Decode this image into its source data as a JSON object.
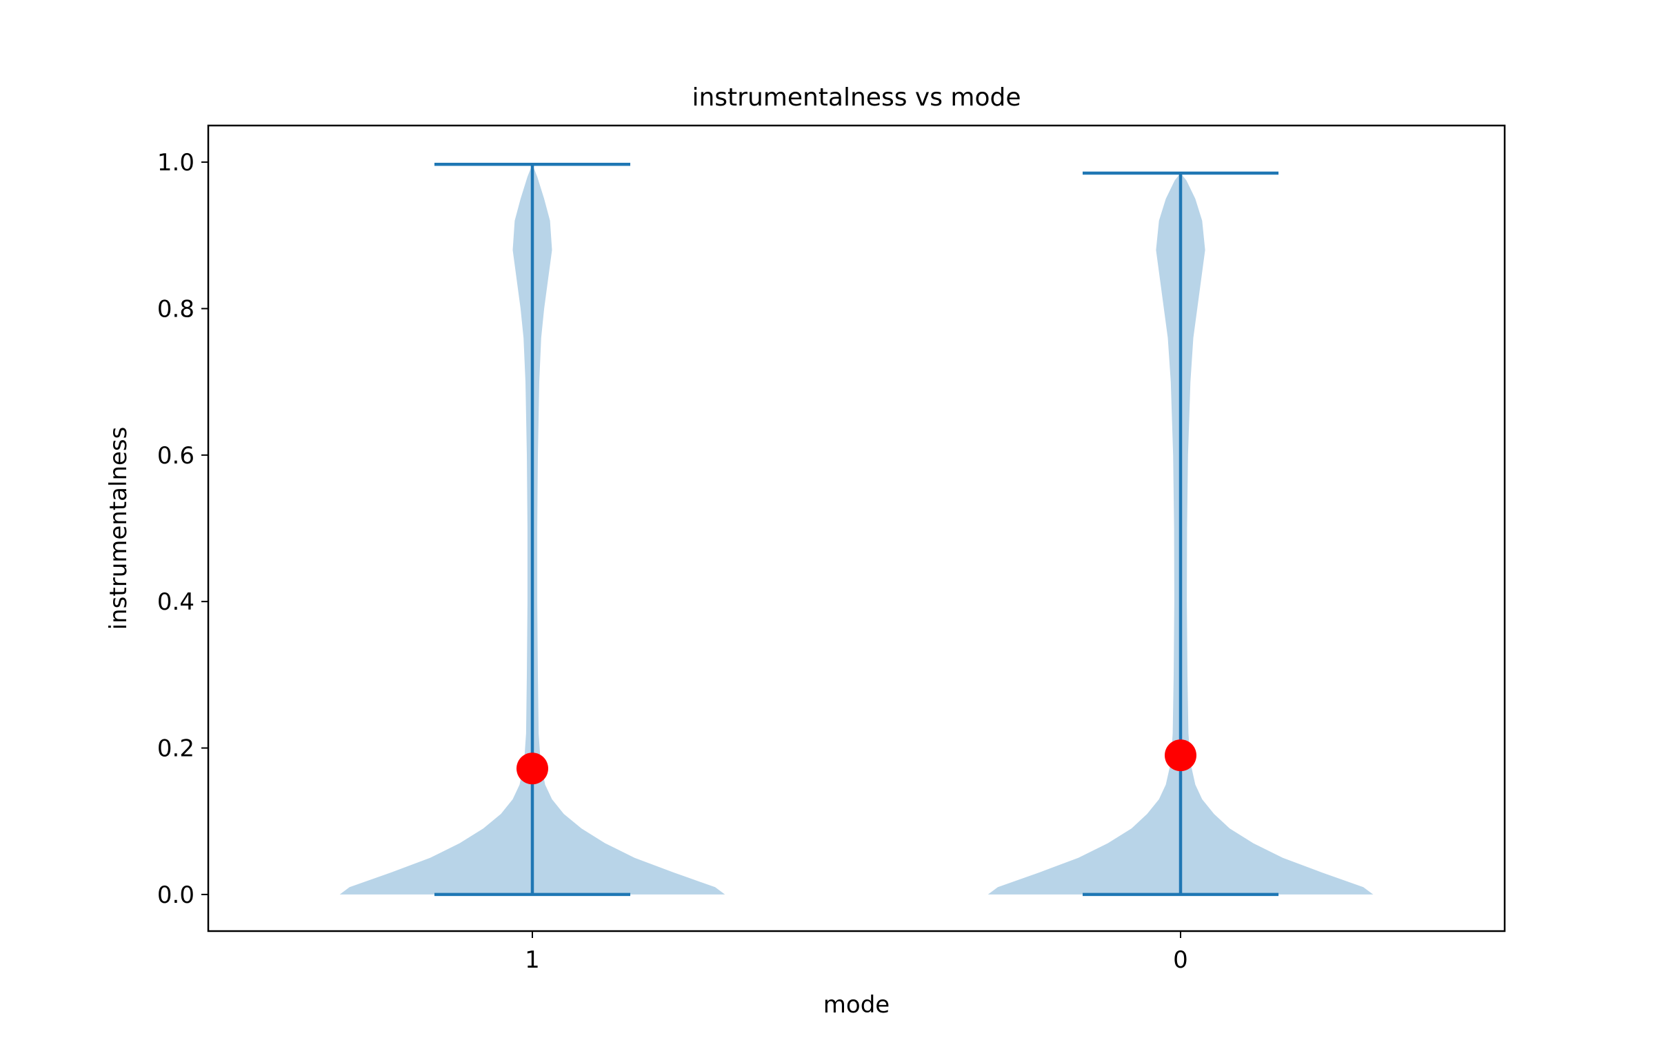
{
  "chart_data": {
    "type": "violin",
    "title": "instrumentalness vs mode",
    "xlabel": "mode",
    "ylabel": "instrumentalness",
    "categories": [
      "1",
      "0"
    ],
    "ylim": [
      -0.05,
      1.05
    ],
    "yticks": [
      0.0,
      0.2,
      0.4,
      0.6,
      0.8,
      1.0
    ],
    "ytick_labels": [
      "0.0",
      "0.2",
      "0.4",
      "0.6",
      "0.8",
      "1.0"
    ],
    "grid": false,
    "colors": {
      "violin_fill": "#b8d4e8",
      "stat_lines": "#1f77b4",
      "mean_marker": "#ff0000"
    },
    "series": [
      {
        "category": "1",
        "min": 0.0,
        "max": 0.997,
        "mean": 0.172,
        "density_profile": [
          [
            0.0,
            0.98
          ],
          [
            0.01,
            0.93
          ],
          [
            0.03,
            0.72
          ],
          [
            0.05,
            0.52
          ],
          [
            0.07,
            0.37
          ],
          [
            0.09,
            0.25
          ],
          [
            0.11,
            0.16
          ],
          [
            0.13,
            0.1
          ],
          [
            0.15,
            0.065
          ],
          [
            0.18,
            0.042
          ],
          [
            0.22,
            0.032
          ],
          [
            0.3,
            0.028
          ],
          [
            0.4,
            0.025
          ],
          [
            0.5,
            0.025
          ],
          [
            0.6,
            0.028
          ],
          [
            0.7,
            0.035
          ],
          [
            0.76,
            0.045
          ],
          [
            0.8,
            0.06
          ],
          [
            0.84,
            0.08
          ],
          [
            0.88,
            0.1
          ],
          [
            0.92,
            0.09
          ],
          [
            0.95,
            0.06
          ],
          [
            0.98,
            0.025
          ],
          [
            0.997,
            0.0
          ]
        ]
      },
      {
        "category": "0",
        "min": 0.0,
        "max": 0.985,
        "mean": 0.19,
        "density_profile": [
          [
            0.0,
            0.98
          ],
          [
            0.01,
            0.93
          ],
          [
            0.03,
            0.72
          ],
          [
            0.05,
            0.52
          ],
          [
            0.07,
            0.37
          ],
          [
            0.09,
            0.25
          ],
          [
            0.11,
            0.17
          ],
          [
            0.13,
            0.11
          ],
          [
            0.15,
            0.075
          ],
          [
            0.18,
            0.05
          ],
          [
            0.22,
            0.04
          ],
          [
            0.3,
            0.035
          ],
          [
            0.4,
            0.032
          ],
          [
            0.5,
            0.033
          ],
          [
            0.6,
            0.038
          ],
          [
            0.7,
            0.05
          ],
          [
            0.76,
            0.065
          ],
          [
            0.8,
            0.085
          ],
          [
            0.84,
            0.105
          ],
          [
            0.88,
            0.125
          ],
          [
            0.92,
            0.11
          ],
          [
            0.95,
            0.075
          ],
          [
            0.975,
            0.03
          ],
          [
            0.985,
            0.0
          ]
        ]
      }
    ]
  }
}
